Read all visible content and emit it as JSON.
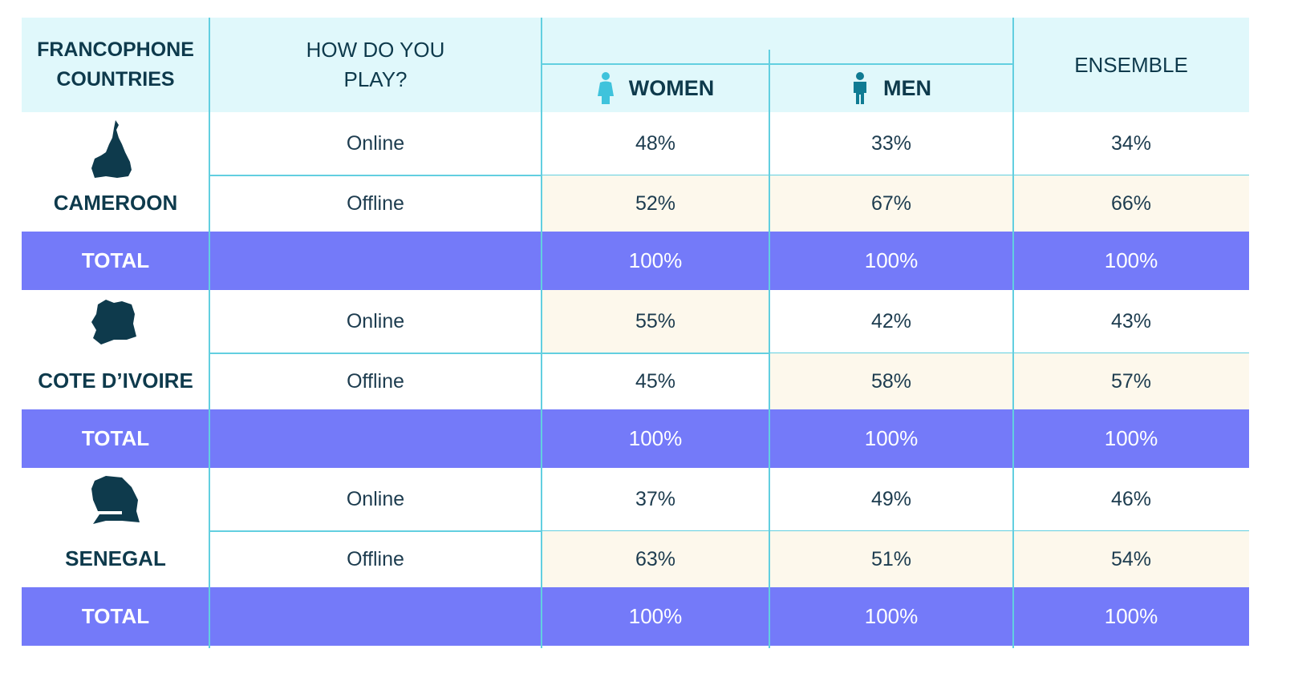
{
  "colors": {
    "header_bg": "#e0f8fb",
    "total_bg": "#747af9",
    "cream_bg": "#fdf8ec",
    "grid_line": "#62cfe0",
    "text_dark": "#0e3a4c",
    "women_icon": "#3fc3dc",
    "men_icon": "#0f7b93"
  },
  "header": {
    "countries_line1": "FRANCOPHONE",
    "countries_line2": "COUNTRIES",
    "how_line1": "HOW DO YOU",
    "how_line2": "PLAY?",
    "women": "WOMEN",
    "men": "MEN",
    "ensemble": "ENSEMBLE"
  },
  "chart_data": {
    "type": "table",
    "columns": [
      "FRANCOPHONE COUNTRIES",
      "HOW DO YOU PLAY?",
      "WOMEN",
      "MEN",
      "ENSEMBLE"
    ],
    "countries": [
      {
        "name": "CAMEROON",
        "icon": "cameroon-map-icon",
        "rows": [
          {
            "mode": "Online",
            "women": "48%",
            "men": "33%",
            "ensemble": "34%"
          },
          {
            "mode": "Offline",
            "women": "52%",
            "men": "67%",
            "ensemble": "66%"
          }
        ],
        "total": {
          "label": "TOTAL",
          "women": "100%",
          "men": "100%",
          "ensemble": "100%"
        }
      },
      {
        "name": "COTE D’IVOIRE",
        "icon": "cote-divoire-map-icon",
        "rows": [
          {
            "mode": "Online",
            "women": "55%",
            "men": "42%",
            "ensemble": "43%"
          },
          {
            "mode": "Offline",
            "women": "45%",
            "men": "58%",
            "ensemble": "57%"
          }
        ],
        "total": {
          "label": "TOTAL",
          "women": "100%",
          "men": "100%",
          "ensemble": "100%"
        }
      },
      {
        "name": "SENEGAL",
        "icon": "senegal-map-icon",
        "rows": [
          {
            "mode": "Online",
            "women": "37%",
            "men": "49%",
            "ensemble": "46%"
          },
          {
            "mode": "Offline",
            "women": "63%",
            "men": "51%",
            "ensemble": "54%"
          }
        ],
        "total": {
          "label": "TOTAL",
          "women": "100%",
          "men": "100%",
          "ensemble": "100%"
        }
      }
    ],
    "highlighted_cells": [
      {
        "country": "CAMEROON",
        "mode": "Offline",
        "columns": [
          "women",
          "men",
          "ensemble"
        ]
      },
      {
        "country": "COTE D’IVOIRE",
        "mode": "Online",
        "columns": [
          "women"
        ]
      },
      {
        "country": "COTE D’IVOIRE",
        "mode": "Offline",
        "columns": [
          "men",
          "ensemble"
        ]
      },
      {
        "country": "SENEGAL",
        "mode": "Offline",
        "columns": [
          "women",
          "men",
          "ensemble"
        ]
      }
    ]
  }
}
